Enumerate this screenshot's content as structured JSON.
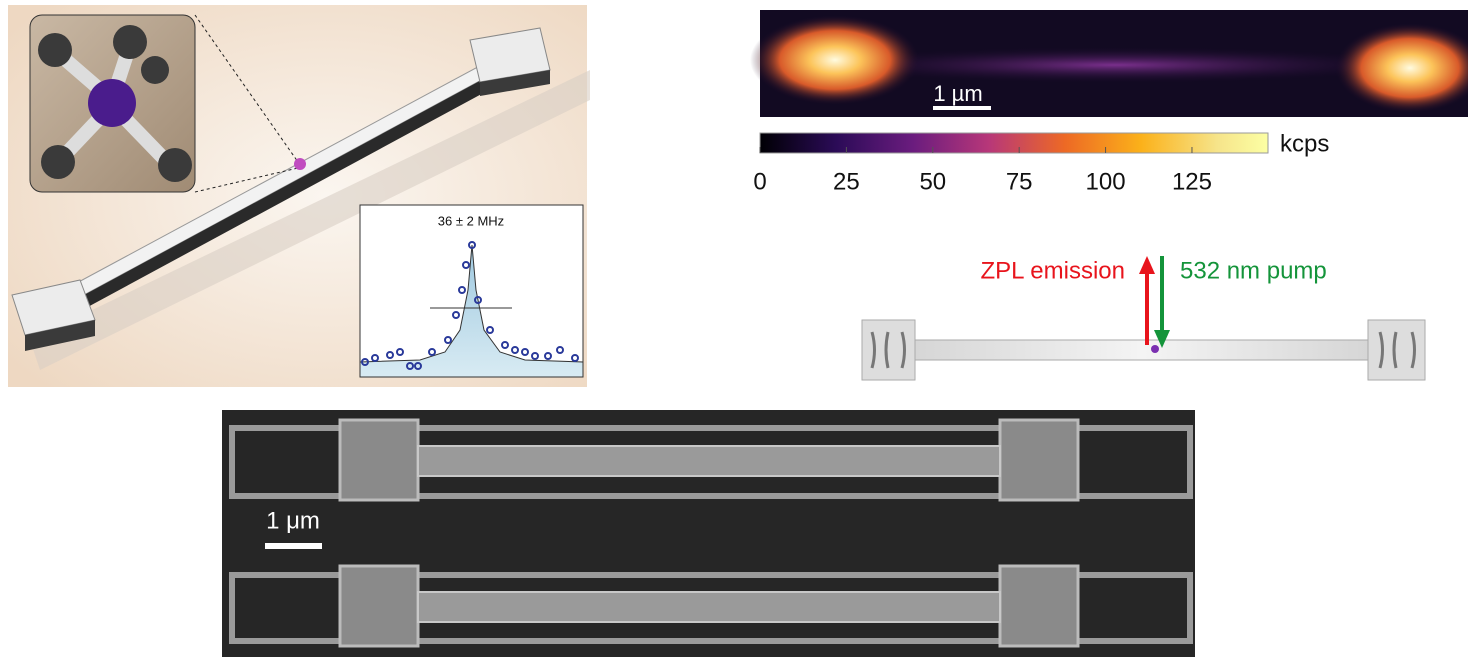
{
  "panel_a": {
    "linewidth_label": "36 ± 2 MHz"
  },
  "panel_b": {
    "scale_bar": "1 µm",
    "colorbar": {
      "unit": "kcps",
      "clim": [
        0,
        147
      ],
      "ticks": [
        0,
        25,
        50,
        75,
        100,
        125
      ]
    }
  },
  "panel_c": {
    "emission_label": "ZPL emission",
    "pump_label": "532 nm pump"
  },
  "panel_d": {
    "scale_bar": "1 μm"
  }
}
